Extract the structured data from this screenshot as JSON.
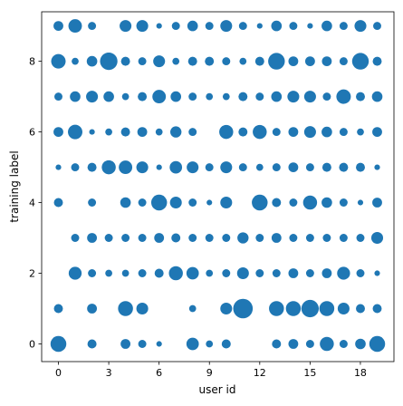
{
  "chart_data": {
    "type": "scatter",
    "title": "",
    "xlabel": "user id",
    "ylabel": "training label",
    "xlim": [
      -1,
      20
    ],
    "ylim": [
      -0.5,
      9.4
    ],
    "xticks": [
      0,
      3,
      6,
      9,
      12,
      15,
      18
    ],
    "yticks": [
      0,
      2,
      4,
      6,
      8
    ],
    "grid": false,
    "marker_color": "#1f77b4",
    "size_encoding": "marker area proportional to sample count (relative units)",
    "size_matrix_rows_are_labels_0_to_9_cols_are_users_0_to_19": [
      [
        16,
        0,
        4,
        0,
        5,
        3,
        1,
        0,
        9,
        2,
        4,
        0,
        0,
        4,
        5,
        3,
        12,
        3,
        6,
        16
      ],
      [
        4,
        0,
        5,
        0,
        14,
        8,
        0,
        0,
        2,
        0,
        8,
        26,
        0,
        14,
        14,
        20,
        14,
        8,
        4,
        4
      ],
      [
        0,
        10,
        3,
        2,
        2,
        3,
        4,
        12,
        9,
        2,
        3,
        8,
        3,
        3,
        5,
        3,
        5,
        10,
        3,
        1
      ],
      [
        0,
        3,
        5,
        3,
        3,
        3,
        5,
        4,
        3,
        3,
        3,
        7,
        3,
        5,
        3,
        3,
        3,
        3,
        3,
        8
      ],
      [
        4,
        0,
        3,
        0,
        6,
        3,
        16,
        8,
        3,
        1,
        8,
        0,
        16,
        4,
        3,
        12,
        6,
        3,
        1,
        5
      ],
      [
        1,
        3,
        4,
        12,
        11,
        8,
        1,
        9,
        8,
        3,
        8,
        3,
        2,
        3,
        5,
        3,
        4,
        4,
        4,
        1
      ],
      [
        5,
        13,
        1,
        2,
        4,
        5,
        2,
        7,
        3,
        0,
        12,
        4,
        12,
        3,
        5,
        8,
        6,
        3,
        2,
        5
      ],
      [
        3,
        6,
        8,
        6,
        2,
        4,
        11,
        6,
        3,
        2,
        2,
        4,
        3,
        6,
        8,
        8,
        3,
        13,
        4,
        6
      ],
      [
        13,
        2,
        6,
        20,
        4,
        3,
        8,
        2,
        4,
        4,
        3,
        2,
        4,
        18,
        5,
        5,
        5,
        3,
        18,
        4
      ],
      [
        5,
        11,
        3,
        0,
        8,
        8,
        1,
        3,
        6,
        3,
        8,
        3,
        1,
        6,
        3,
        1,
        6,
        3,
        8,
        3
      ]
    ]
  }
}
